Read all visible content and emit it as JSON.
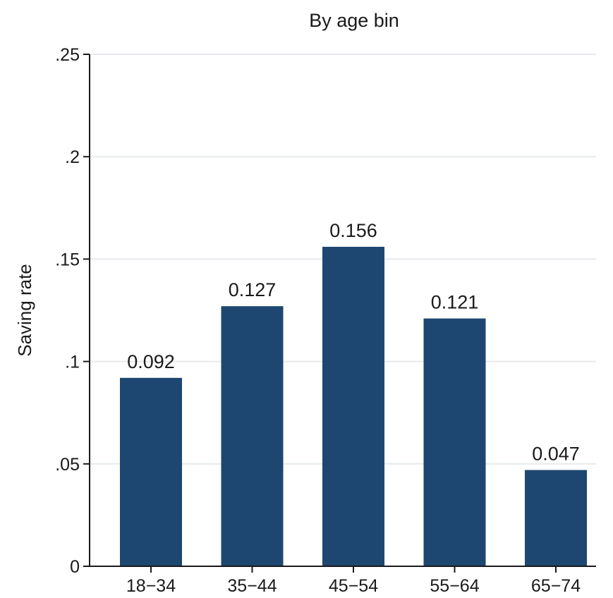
{
  "chart_data": {
    "type": "bar",
    "title": "By age bin",
    "xlabel": "",
    "ylabel": "Saving rate",
    "categories": [
      "18−34",
      "35−44",
      "45−54",
      "55−64",
      "65−74"
    ],
    "values": [
      0.092,
      0.127,
      0.156,
      0.121,
      0.047
    ],
    "data_labels": [
      "0.092",
      "0.127",
      "0.156",
      "0.121",
      "0.047"
    ],
    "ylim": [
      0,
      0.25
    ],
    "yticks": [
      0,
      0.05,
      0.1,
      0.15,
      0.2,
      0.25
    ],
    "ytick_labels": [
      "0",
      ".05",
      ".1",
      ".15",
      ".2",
      ".25"
    ],
    "grid": true,
    "legend": "none",
    "colors": {
      "bar": "#1d4770",
      "grid": "#e6eaee",
      "axis": "#1a1a1a"
    }
  }
}
